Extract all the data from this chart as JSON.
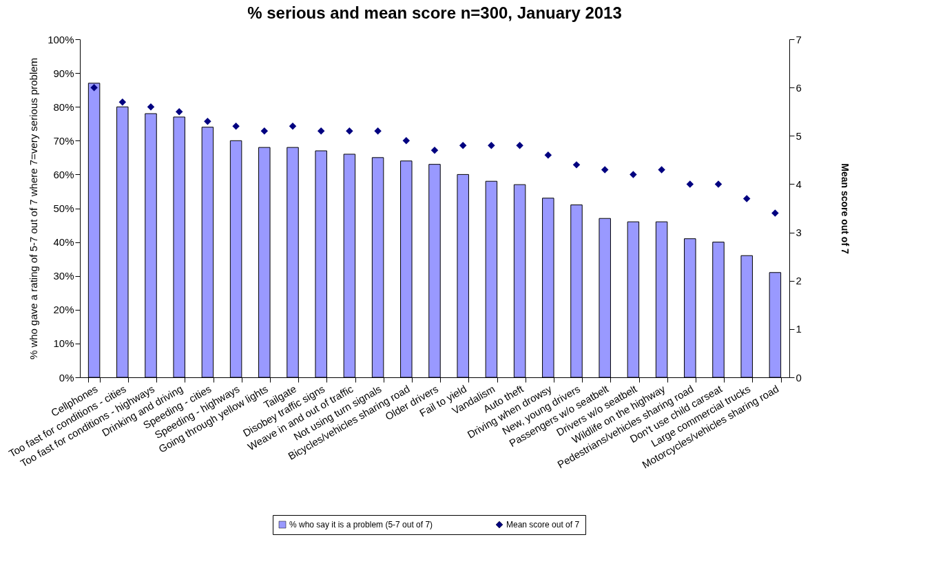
{
  "chart_data": {
    "type": "bar",
    "title": "% serious and mean score n=300, January 2013",
    "ylabel": "% who gave a rating of 5-7 out of 7  where 7=very serious problem",
    "y2label": "Mean score out of 7",
    "categories": [
      "Cellphones",
      "Too fast for conditions - cities",
      "Too fast for conditions - highways",
      "Drinking and driving",
      "Speeding - cities",
      "Speeding - highways",
      "Going through yellow lights",
      "Tailgate",
      "Disobey traffic signs",
      "Weave in and out of traffic",
      "Not using turn signals",
      "Bicycles/vehicles sharing road",
      "Older drivers",
      "Fail to yield",
      "Vandalism",
      "Auto theft",
      "Driving when drowsy",
      "New, young drivers",
      "Passengers w/o seatbelt",
      "Drivers w/o seatbelt",
      "Wildlife on the highway",
      "Pedestrians/vehicles sharing road",
      "Don't use child carseat",
      "Large commercial trucks",
      "Motorcycles/vehicles sharing road"
    ],
    "series": [
      {
        "name": "% who say it is a problem (5-7 out of 7)",
        "color": "#9999ff",
        "values": [
          87,
          80,
          78,
          77,
          74,
          70,
          68,
          68,
          67,
          66,
          65,
          64,
          63,
          60,
          58,
          57,
          53,
          51,
          47,
          46,
          46,
          41,
          40,
          36,
          31
        ]
      },
      {
        "name": "Mean score out of 7",
        "type": "scatter",
        "axis": "y2",
        "marker": "diamond",
        "color": "#000080",
        "values": [
          6.0,
          5.7,
          5.6,
          5.5,
          5.3,
          5.2,
          5.1,
          5.2,
          5.1,
          5.1,
          5.1,
          4.9,
          4.7,
          4.8,
          4.8,
          4.8,
          4.6,
          4.4,
          4.3,
          4.2,
          4.3,
          4.0,
          4.0,
          3.7,
          3.4
        ]
      }
    ],
    "ylim": [
      0,
      100
    ],
    "yticks": [
      {
        "value": 0,
        "label": "0%"
      },
      {
        "value": 10,
        "label": "10%"
      },
      {
        "value": 20,
        "label": "20%"
      },
      {
        "value": 30,
        "label": "30%"
      },
      {
        "value": 40,
        "label": "40%"
      },
      {
        "value": 50,
        "label": "50%"
      },
      {
        "value": 60,
        "label": "60%"
      },
      {
        "value": 70,
        "label": "70%"
      },
      {
        "value": 80,
        "label": "80%"
      },
      {
        "value": 90,
        "label": "90%"
      },
      {
        "value": 100,
        "label": "100%"
      }
    ],
    "y2lim": [
      0,
      7
    ],
    "y2ticks": [
      0,
      1,
      2,
      3,
      4,
      5,
      6,
      7
    ],
    "legend": "bottom"
  }
}
